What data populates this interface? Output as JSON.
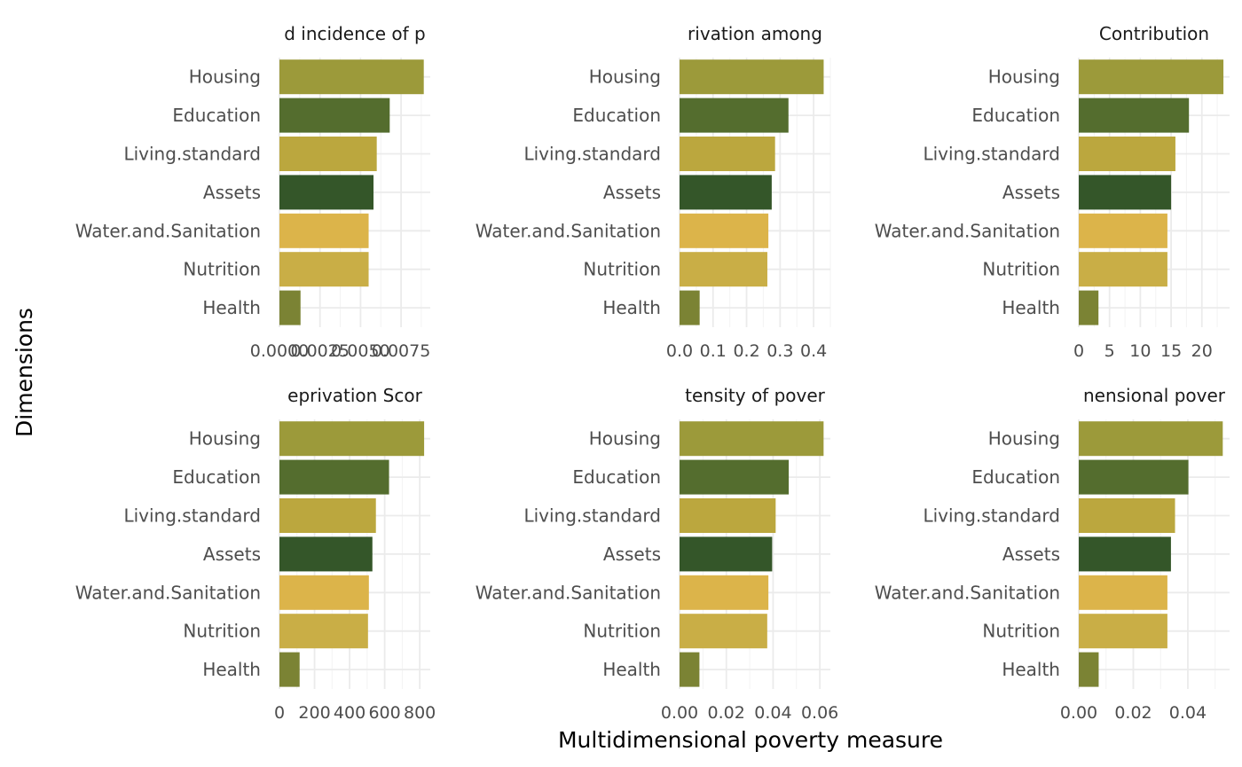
{
  "chart_data": {
    "type": "bar",
    "orientation": "horizontal",
    "xlabel": "Multidimensional poverty measure",
    "ylabel": "Dimensions",
    "categories": [
      "Housing",
      "Education",
      "Living.standard",
      "Assets",
      "Water.and.Sanitation",
      "Nutrition",
      "Health"
    ],
    "colors": {
      "Housing": "#9c9a3a",
      "Education": "#546d2e",
      "Living.standard": "#bba73e",
      "Assets": "#345629",
      "Water.and.Sanitation": "#dcb44a",
      "Nutrition": "#c9ae46",
      "Health": "#7b8334"
    },
    "grid": true,
    "legend": "none",
    "panels": [
      {
        "title": "d incidence of p",
        "values": [
          0.0089,
          0.0068,
          0.006,
          0.0058,
          0.0055,
          0.0055,
          0.0013
        ],
        "xlim": [
          0,
          0.0093
        ],
        "ticks": [
          0,
          0.0025,
          0.005,
          0.0075
        ],
        "tick_labels": [
          "0.0000",
          "0.0025",
          "0.0050",
          "0.0075"
        ]
      },
      {
        "title": "rivation among",
        "values": [
          0.43,
          0.325,
          0.285,
          0.275,
          0.265,
          0.262,
          0.06
        ],
        "xlim": [
          0,
          0.45
        ],
        "ticks": [
          0,
          0.1,
          0.2,
          0.3,
          0.4
        ],
        "tick_labels": [
          "0.0",
          "0.1",
          "0.2",
          "0.3",
          "0.4"
        ]
      },
      {
        "title": "Contribution",
        "values": [
          23.5,
          17.9,
          15.7,
          15.0,
          14.4,
          14.4,
          3.2
        ],
        "xlim": [
          0,
          24.5
        ],
        "ticks": [
          0,
          5,
          10,
          15,
          20
        ],
        "tick_labels": [
          "0",
          "5",
          "10",
          "15",
          "20"
        ]
      },
      {
        "title": "eprivation Scor",
        "values": [
          825,
          625,
          550,
          530,
          510,
          505,
          115
        ],
        "xlim": [
          0,
          860
        ],
        "ticks": [
          0,
          200,
          400,
          600,
          800
        ],
        "tick_labels": [
          "0",
          "200",
          "400",
          "600",
          "800"
        ]
      },
      {
        "title": "tensity of pover",
        "values": [
          0.0616,
          0.0467,
          0.0411,
          0.0396,
          0.038,
          0.0375,
          0.0085
        ],
        "xlim": [
          0,
          0.0645
        ],
        "ticks": [
          0,
          0.02,
          0.04,
          0.06
        ],
        "tick_labels": [
          "0.00",
          "0.02",
          "0.04",
          "0.06"
        ]
      },
      {
        "title": "nensional pover",
        "values": [
          0.0528,
          0.0402,
          0.0353,
          0.0338,
          0.0325,
          0.0325,
          0.0073
        ],
        "xlim": [
          0,
          0.0553
        ],
        "ticks": [
          0,
          0.02,
          0.04
        ],
        "tick_labels": [
          "0.00",
          "0.02",
          "0.04"
        ]
      }
    ]
  }
}
